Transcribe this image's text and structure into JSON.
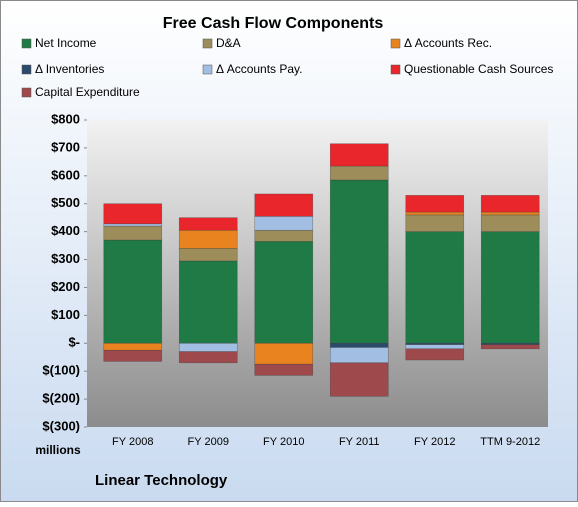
{
  "chart_data": {
    "type": "stacked-bar",
    "title": "Free Cash Flow Components",
    "categories": [
      "FY 2008",
      "FY 2009",
      "FY 2010",
      "FY 2011",
      "FY 2012",
      "TTM 9-2012"
    ],
    "series": [
      {
        "name": "Net Income",
        "color": "#1f7a45",
        "values": [
          370,
          295,
          365,
          585,
          400,
          400
        ]
      },
      {
        "name": "D&A",
        "color": "#9c8d5b",
        "values": [
          50,
          45,
          40,
          50,
          60,
          60
        ]
      },
      {
        "name": "Δ Accounts Rec.",
        "color": "#e8831f",
        "values": [
          -25,
          65,
          -75,
          0,
          10,
          10
        ]
      },
      {
        "name": "Δ Inventories",
        "color": "#2c4a6b",
        "values": [
          0,
          0,
          0,
          -15,
          -5,
          -5
        ]
      },
      {
        "name": "Δ Accounts Pay.",
        "color": "#a2bee2",
        "values": [
          8,
          -30,
          50,
          -55,
          -15,
          0
        ]
      },
      {
        "name": "Questionable Cash Sources",
        "color": "#e8262b",
        "values": [
          72,
          45,
          80,
          80,
          60,
          60
        ]
      },
      {
        "name": "Capital Expenditure",
        "color": "#9e4a4c",
        "values": [
          -40,
          -40,
          -40,
          -120,
          -40,
          -15
        ]
      }
    ],
    "ylim": [
      -300,
      800
    ],
    "yticks": [
      {
        "value": -300,
        "label": "$(300)"
      },
      {
        "value": -200,
        "label": "$(200)"
      },
      {
        "value": -100,
        "label": "$(100)"
      },
      {
        "value": 0,
        "label": "$-"
      },
      {
        "value": 100,
        "label": "$100"
      },
      {
        "value": 200,
        "label": "$200"
      },
      {
        "value": 300,
        "label": "$300"
      },
      {
        "value": 400,
        "label": "$400"
      },
      {
        "value": 500,
        "label": "$500"
      },
      {
        "value": 600,
        "label": "$600"
      },
      {
        "value": 700,
        "label": "$700"
      },
      {
        "value": 800,
        "label": "$800"
      }
    ],
    "y_unit_label": "millions",
    "footer": "Linear Technology"
  }
}
